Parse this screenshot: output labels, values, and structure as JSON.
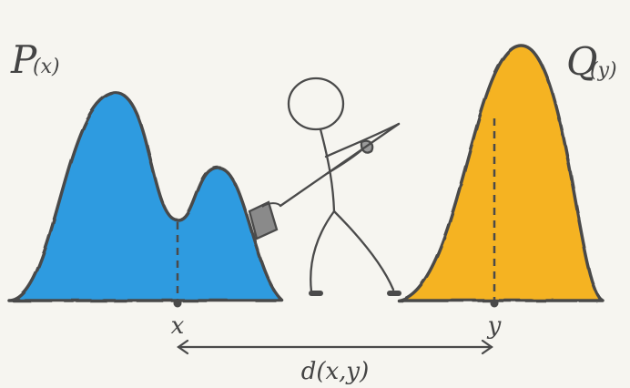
{
  "labels": {
    "p": "P",
    "p_arg": "(x)",
    "q": "Q",
    "q_arg": "(y)",
    "x": "x",
    "y": "y",
    "distance": "d(x,y)"
  },
  "colors": {
    "background": "#f6f5f0",
    "p_fill": "#2f9be0",
    "q_fill": "#f5b324",
    "stroke": "#4a4a4a",
    "bucket": "#8a8a8a"
  }
}
